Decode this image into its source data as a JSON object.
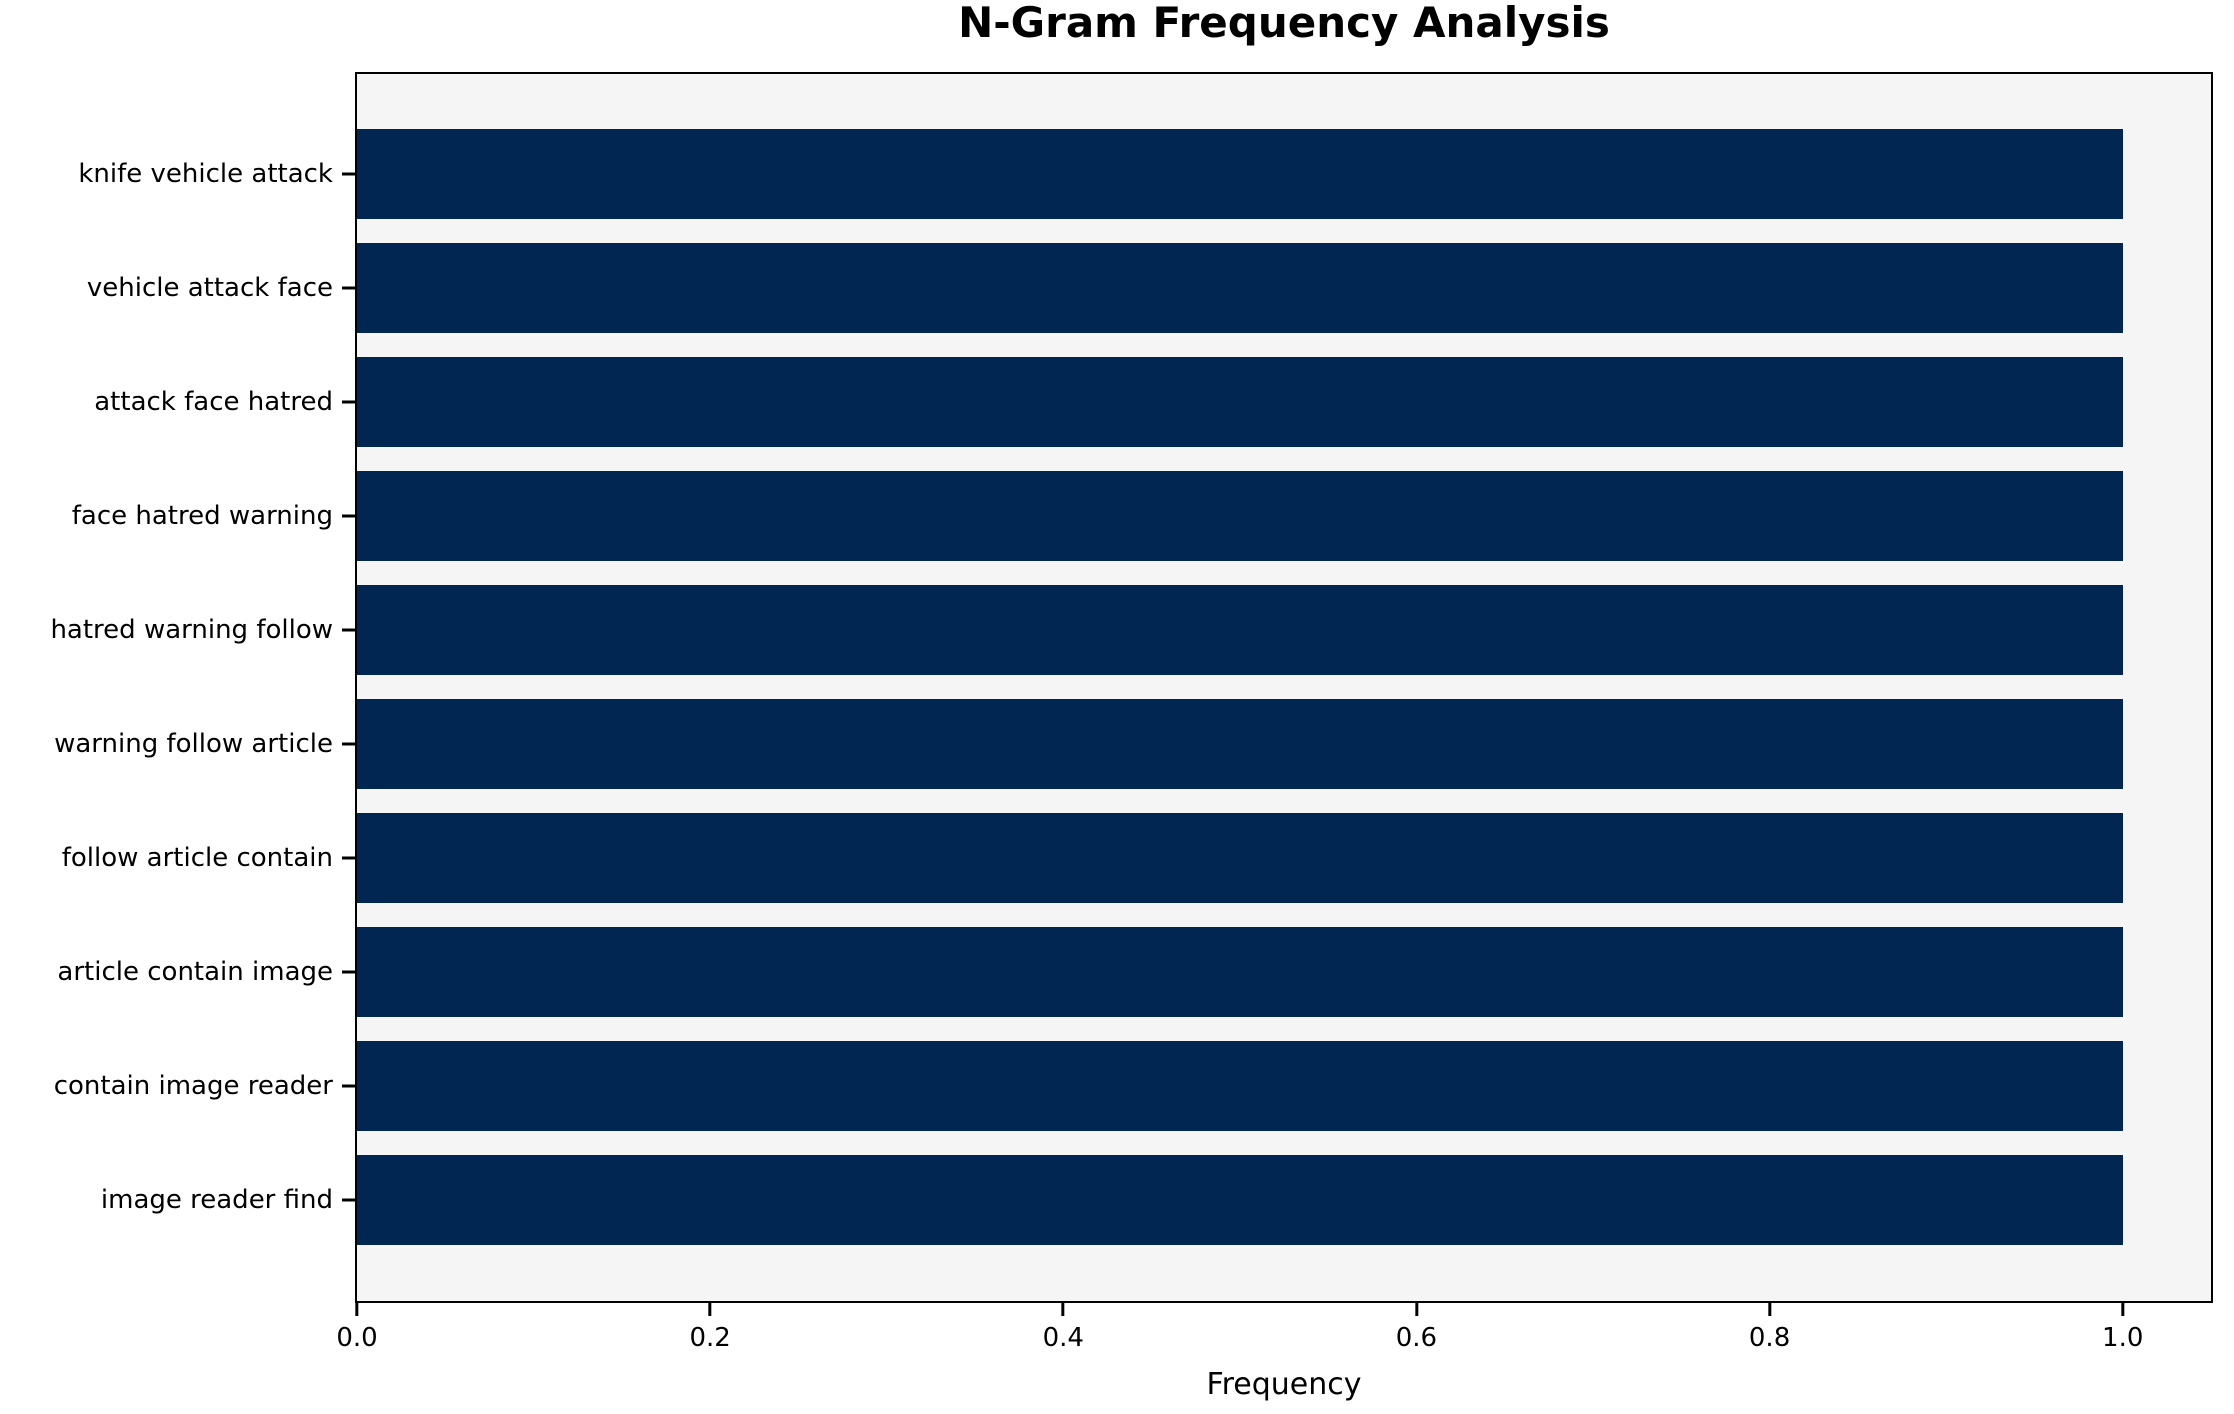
{
  "chart_data": {
    "type": "bar",
    "orientation": "horizontal",
    "title": "N-Gram Frequency Analysis",
    "xlabel": "Frequency",
    "ylabel": "",
    "categories": [
      "knife vehicle attack",
      "vehicle attack face",
      "attack face hatred",
      "face hatred warning",
      "hatred warning follow",
      "warning follow article",
      "follow article contain",
      "article contain image",
      "contain image reader",
      "image reader find"
    ],
    "values": [
      1.0,
      1.0,
      1.0,
      1.0,
      1.0,
      1.0,
      1.0,
      1.0,
      1.0,
      1.0
    ],
    "xlim": [
      0,
      1.05
    ],
    "x_tick_values": [
      0.0,
      0.2,
      0.4,
      0.6,
      0.8,
      1.0
    ],
    "x_tick_labels": [
      "0.0",
      "0.2",
      "0.4",
      "0.6",
      "0.8",
      "1.0"
    ],
    "grid": false,
    "legend_position": "none",
    "colors": {
      "bar": "#012652",
      "plot_background": "#f5f5f5",
      "figure_background": "#ffffff",
      "axis": "#000000",
      "text": "#000000"
    }
  }
}
